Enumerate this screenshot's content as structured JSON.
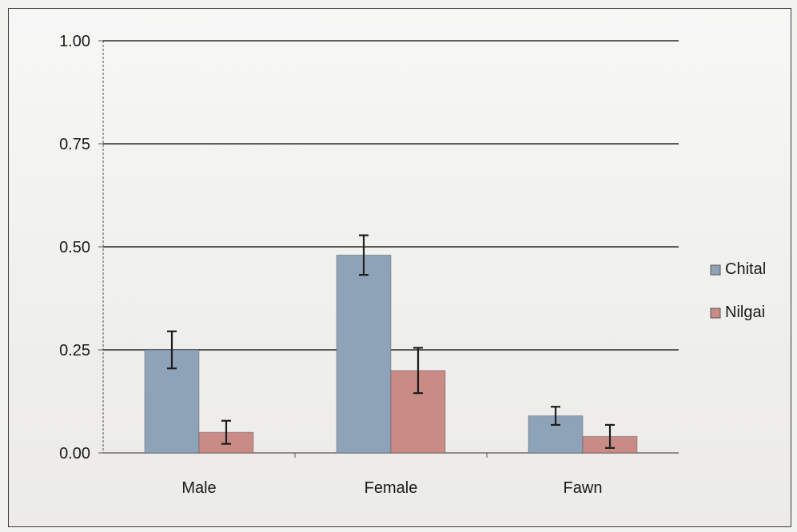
{
  "chart_data": {
    "type": "bar",
    "title": "",
    "xlabel": "",
    "ylabel": "",
    "categories": [
      "Male",
      "Female",
      "Fawn"
    ],
    "series": [
      {
        "name": "Chital",
        "values": [
          0.25,
          0.48,
          0.09
        ],
        "errors": [
          0.045,
          0.048,
          0.022
        ],
        "color": "#8fa3b8"
      },
      {
        "name": "Nilgai",
        "values": [
          0.05,
          0.2,
          0.04
        ],
        "errors": [
          0.028,
          0.055,
          0.028
        ],
        "color": "#c98b86"
      }
    ],
    "ylim": [
      0,
      1
    ],
    "yticks": [
      "0.00",
      "0.25",
      "0.50",
      "0.75",
      "1.00"
    ],
    "grid": true,
    "legend_position": "right",
    "colors": {
      "gridline": "#2b2b2b",
      "axis": "#555555",
      "error_bar": "#1e1e1e"
    }
  }
}
